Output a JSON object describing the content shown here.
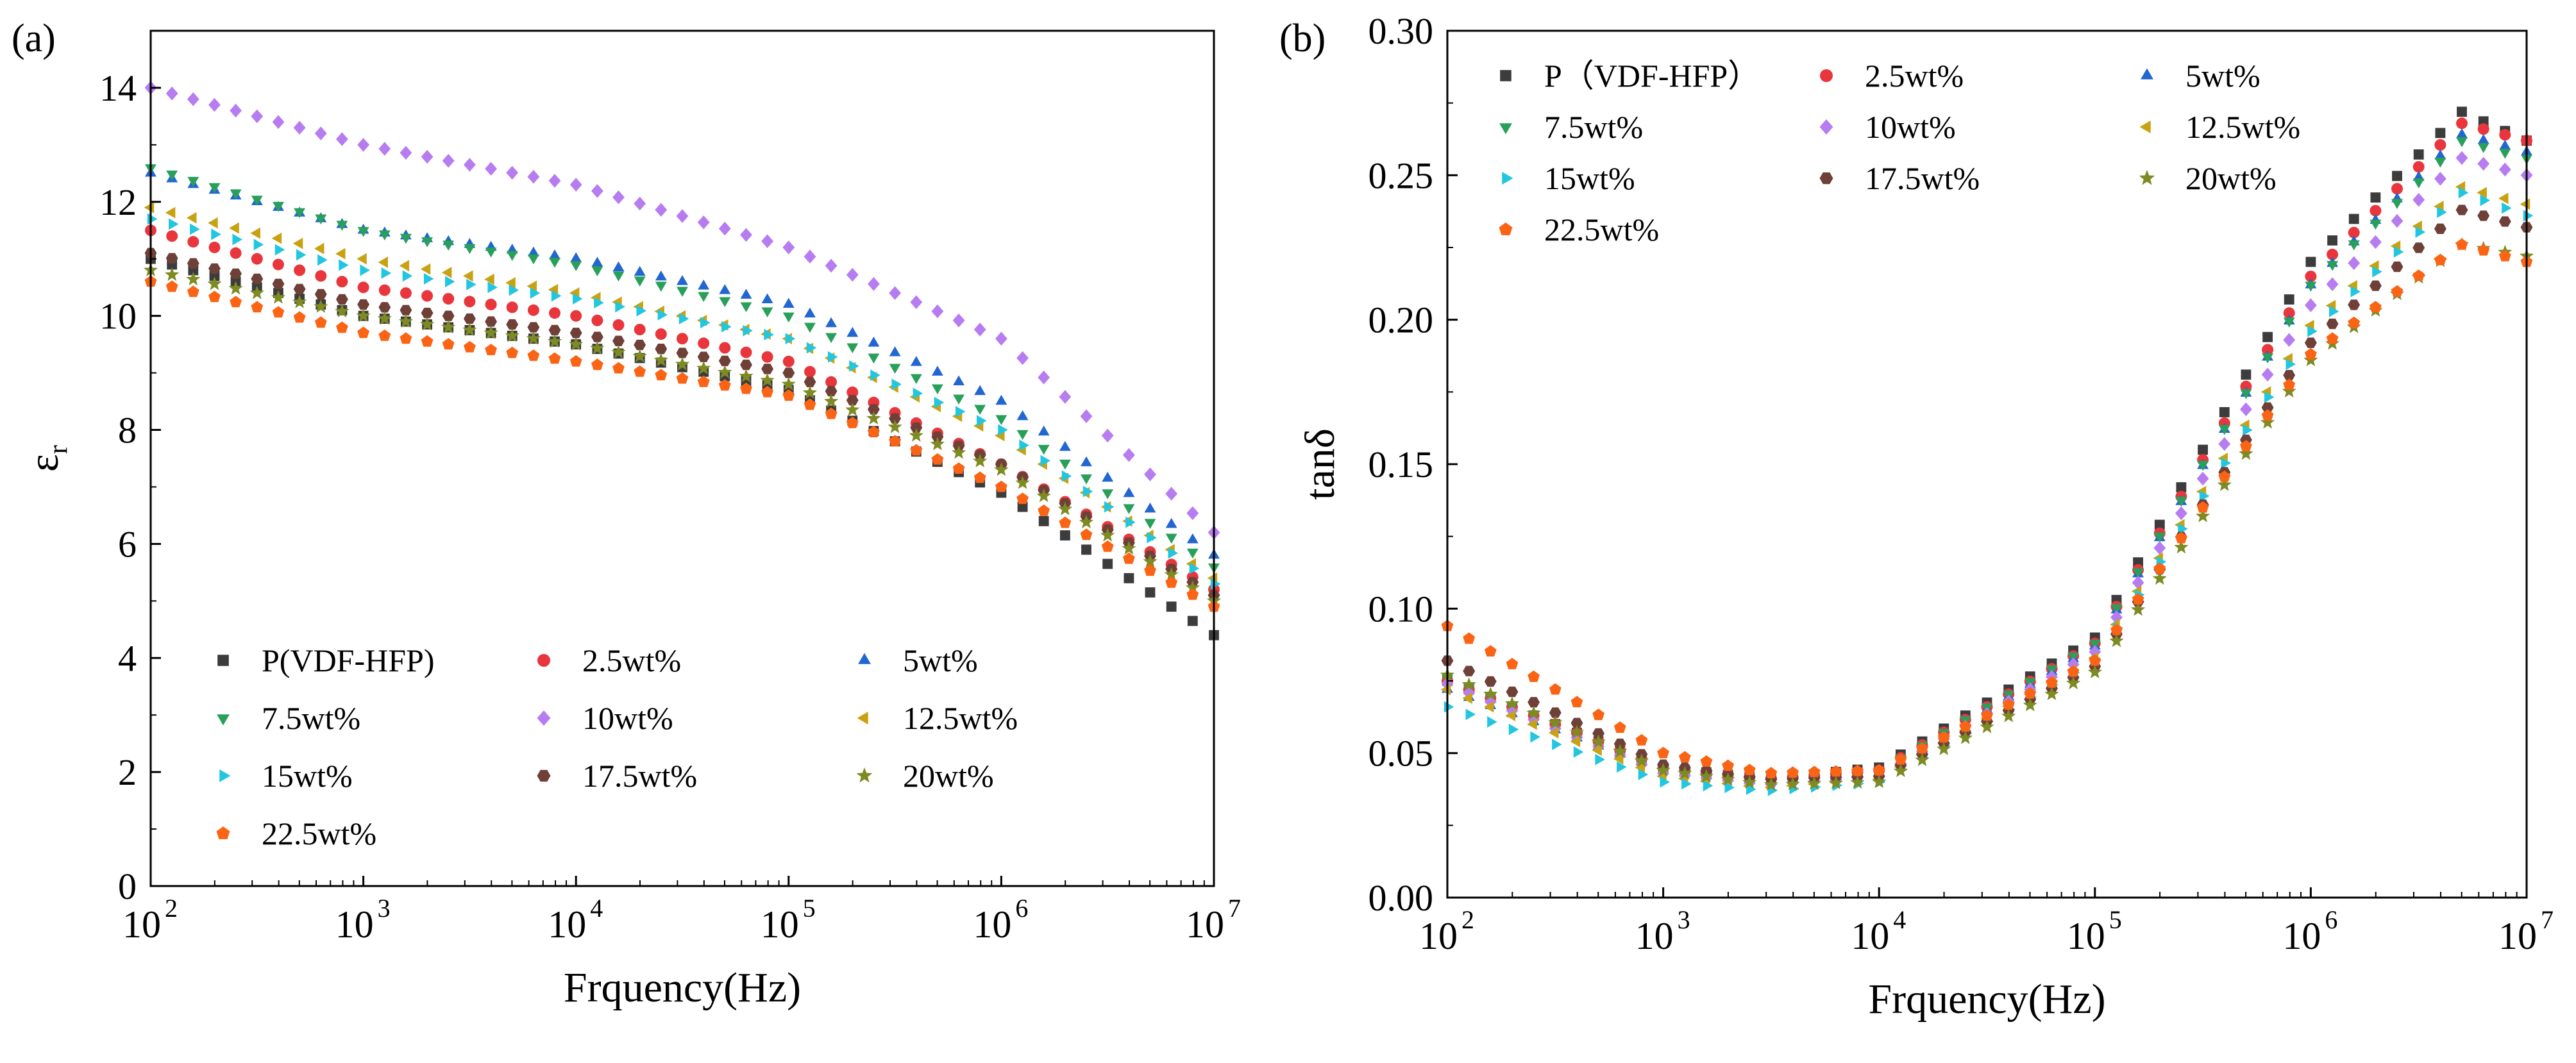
{
  "colors": {
    "P(VDF-HFP)": "#3c3c3c",
    "2.5wt%": "#e8363c",
    "5wt%": "#2266d2",
    "7.5wt%": "#28a05a",
    "10wt%": "#b77df0",
    "12.5wt%": "#c8a212",
    "15wt%": "#22c6e0",
    "17.5wt%": "#6e4038",
    "20wt%": "#7e8a22",
    "22.5wt%": "#fa6414"
  },
  "chart_data": [
    {
      "type": "scatter",
      "panel_label": "(a)",
      "title": "",
      "xlabel": "Frquency(Hz)",
      "ylabel": "εr",
      "ylabel_main": "ε",
      "ylabel_sub": "r",
      "xscale": "log",
      "xlim": [
        100,
        10000000
      ],
      "ylim": [
        0,
        15
      ],
      "xticks": [
        100,
        1000,
        10000,
        100000,
        1000000,
        10000000
      ],
      "xtick_base": "10",
      "xtick_exponents": [
        "2",
        "3",
        "4",
        "5",
        "6",
        "7"
      ],
      "yticks": [
        0,
        2,
        4,
        6,
        8,
        10,
        12,
        14
      ],
      "ytick_labels": [
        "0",
        "2",
        "4",
        "6",
        "8",
        "10",
        "12",
        "14"
      ],
      "grid": false,
      "legend_position": "bottom-left",
      "legend_columns": 3,
      "series": [
        {
          "name": "P(VDF-HFP)",
          "marker": "square",
          "anchors": [
            [
              100,
              11.0
            ],
            [
              1000,
              10.0
            ],
            [
              10000,
              9.5
            ],
            [
              100000,
              8.7
            ],
            [
              1000000,
              6.9
            ],
            [
              10000000,
              4.4
            ]
          ]
        },
        {
          "name": "2.5wt%",
          "marker": "circle",
          "anchors": [
            [
              100,
              11.5
            ],
            [
              1000,
              10.5
            ],
            [
              10000,
              10.0
            ],
            [
              100000,
              9.2
            ],
            [
              1000000,
              7.4
            ],
            [
              10000000,
              5.2
            ]
          ]
        },
        {
          "name": "5wt%",
          "marker": "triangle-up",
          "anchors": [
            [
              100,
              12.5
            ],
            [
              1000,
              11.5
            ],
            [
              10000,
              11.0
            ],
            [
              100000,
              10.2
            ],
            [
              1000000,
              8.5
            ],
            [
              10000000,
              5.8
            ]
          ]
        },
        {
          "name": "7.5wt%",
          "marker": "triangle-down",
          "anchors": [
            [
              100,
              12.6
            ],
            [
              1000,
              11.5
            ],
            [
              10000,
              10.9
            ],
            [
              100000,
              10.0
            ],
            [
              1000000,
              8.2
            ],
            [
              10000000,
              5.6
            ]
          ]
        },
        {
          "name": "10wt%",
          "marker": "diamond",
          "anchors": [
            [
              100,
              14.0
            ],
            [
              1000,
              13.0
            ],
            [
              10000,
              12.3
            ],
            [
              100000,
              11.2
            ],
            [
              1000000,
              9.6
            ],
            [
              10000000,
              6.2
            ]
          ]
        },
        {
          "name": "12.5wt%",
          "marker": "triangle-left",
          "anchors": [
            [
              100,
              11.9
            ],
            [
              1000,
              11.0
            ],
            [
              10000,
              10.4
            ],
            [
              100000,
              9.6
            ],
            [
              1000000,
              7.9
            ],
            [
              10000000,
              5.4
            ]
          ]
        },
        {
          "name": "15wt%",
          "marker": "triangle-right",
          "anchors": [
            [
              100,
              11.7
            ],
            [
              1000,
              10.8
            ],
            [
              10000,
              10.3
            ],
            [
              100000,
              9.6
            ],
            [
              1000000,
              8.0
            ],
            [
              10000000,
              5.3
            ]
          ]
        },
        {
          "name": "17.5wt%",
          "marker": "hexagon",
          "anchors": [
            [
              100,
              11.1
            ],
            [
              1000,
              10.2
            ],
            [
              10000,
              9.7
            ],
            [
              100000,
              9.0
            ],
            [
              1000000,
              7.4
            ],
            [
              10000000,
              5.1
            ]
          ]
        },
        {
          "name": "20wt%",
          "marker": "star",
          "anchors": [
            [
              100,
              10.8
            ],
            [
              1000,
              10.0
            ],
            [
              10000,
              9.5
            ],
            [
              100000,
              8.8
            ],
            [
              1000000,
              7.3
            ],
            [
              10000000,
              5.0
            ]
          ]
        },
        {
          "name": "22.5wt%",
          "marker": "pentagon",
          "anchors": [
            [
              100,
              10.6
            ],
            [
              1000,
              9.7
            ],
            [
              10000,
              9.2
            ],
            [
              100000,
              8.6
            ],
            [
              1000000,
              7.0
            ],
            [
              10000000,
              4.9
            ]
          ]
        }
      ]
    },
    {
      "type": "scatter",
      "panel_label": "(b)",
      "title": "",
      "xlabel": "Frquency(Hz)",
      "ylabel": "tanδ",
      "xscale": "log",
      "xlim": [
        100,
        10000000
      ],
      "ylim": [
        0,
        0.3
      ],
      "xticks": [
        100,
        1000,
        10000,
        100000,
        1000000,
        10000000
      ],
      "xtick_base": "10",
      "xtick_exponents": [
        "2",
        "3",
        "4",
        "5",
        "6",
        "7"
      ],
      "yticks": [
        0,
        0.05,
        0.1,
        0.15,
        0.2,
        0.25,
        0.3
      ],
      "ytick_labels": [
        "0.00",
        "0.05",
        "0.10",
        "0.15",
        "0.20",
        "0.25",
        "0.30"
      ],
      "grid": false,
      "legend_position": "top-left",
      "legend_columns": 3,
      "series": [
        {
          "name": "P（VDF-HFP）",
          "color_key": "P(VDF-HFP)",
          "marker": "square",
          "anchors": [
            [
              100,
              0.075
            ],
            [
              1000,
              0.045
            ],
            [
              3000,
              0.041
            ],
            [
              10000,
              0.045
            ],
            [
              100000,
              0.09
            ],
            [
              1000000,
              0.22
            ],
            [
              5000000,
              0.272
            ],
            [
              10000000,
              0.262
            ]
          ]
        },
        {
          "name": "2.5wt%",
          "marker": "circle",
          "anchors": [
            [
              100,
              0.075
            ],
            [
              1000,
              0.045
            ],
            [
              3000,
              0.041
            ],
            [
              10000,
              0.044
            ],
            [
              100000,
              0.088
            ],
            [
              1000000,
              0.215
            ],
            [
              5000000,
              0.268
            ],
            [
              10000000,
              0.262
            ]
          ]
        },
        {
          "name": "5wt%",
          "marker": "triangle-up",
          "anchors": [
            [
              100,
              0.072
            ],
            [
              1000,
              0.044
            ],
            [
              3000,
              0.04
            ],
            [
              10000,
              0.043
            ],
            [
              100000,
              0.087
            ],
            [
              1000000,
              0.212
            ],
            [
              5000000,
              0.264
            ],
            [
              10000000,
              0.258
            ]
          ]
        },
        {
          "name": "7.5wt%",
          "marker": "triangle-down",
          "anchors": [
            [
              100,
              0.076
            ],
            [
              1000,
              0.044
            ],
            [
              3000,
              0.04
            ],
            [
              10000,
              0.044
            ],
            [
              100000,
              0.088
            ],
            [
              1000000,
              0.212
            ],
            [
              5000000,
              0.262
            ],
            [
              10000000,
              0.256
            ]
          ]
        },
        {
          "name": "10wt%",
          "marker": "diamond",
          "anchors": [
            [
              100,
              0.074
            ],
            [
              1000,
              0.043
            ],
            [
              3000,
              0.039
            ],
            [
              10000,
              0.042
            ],
            [
              100000,
              0.085
            ],
            [
              1000000,
              0.205
            ],
            [
              5000000,
              0.256
            ],
            [
              10000000,
              0.25
            ]
          ]
        },
        {
          "name": "12.5wt%",
          "marker": "triangle-left",
          "anchors": [
            [
              100,
              0.072
            ],
            [
              1000,
              0.042
            ],
            [
              3000,
              0.038
            ],
            [
              10000,
              0.041
            ],
            [
              100000,
              0.083
            ],
            [
              1000000,
              0.198
            ],
            [
              5000000,
              0.246
            ],
            [
              10000000,
              0.24
            ]
          ]
        },
        {
          "name": "15wt%",
          "marker": "triangle-right",
          "anchors": [
            [
              100,
              0.066
            ],
            [
              1000,
              0.04
            ],
            [
              3000,
              0.037
            ],
            [
              10000,
              0.04
            ],
            [
              100000,
              0.082
            ],
            [
              1000000,
              0.196
            ],
            [
              5000000,
              0.244
            ],
            [
              10000000,
              0.236
            ]
          ]
        },
        {
          "name": "17.5wt%",
          "marker": "hexagon",
          "anchors": [
            [
              100,
              0.082
            ],
            [
              1000,
              0.046
            ],
            [
              3000,
              0.041
            ],
            [
              10000,
              0.042
            ],
            [
              100000,
              0.08
            ],
            [
              1000000,
              0.192
            ],
            [
              5000000,
              0.238
            ],
            [
              10000000,
              0.232
            ]
          ]
        },
        {
          "name": "20wt%",
          "marker": "star",
          "anchors": [
            [
              100,
              0.077
            ],
            [
              1000,
              0.044
            ],
            [
              3000,
              0.039
            ],
            [
              10000,
              0.04
            ],
            [
              100000,
              0.078
            ],
            [
              1000000,
              0.186
            ],
            [
              5000000,
              0.226
            ],
            [
              10000000,
              0.222
            ]
          ]
        },
        {
          "name": "22.5wt%",
          "marker": "pentagon",
          "anchors": [
            [
              100,
              0.094
            ],
            [
              1000,
              0.05
            ],
            [
              3000,
              0.043
            ],
            [
              10000,
              0.044
            ],
            [
              100000,
              0.082
            ],
            [
              1000000,
              0.188
            ],
            [
              5000000,
              0.226
            ],
            [
              10000000,
              0.22
            ]
          ]
        }
      ]
    }
  ]
}
